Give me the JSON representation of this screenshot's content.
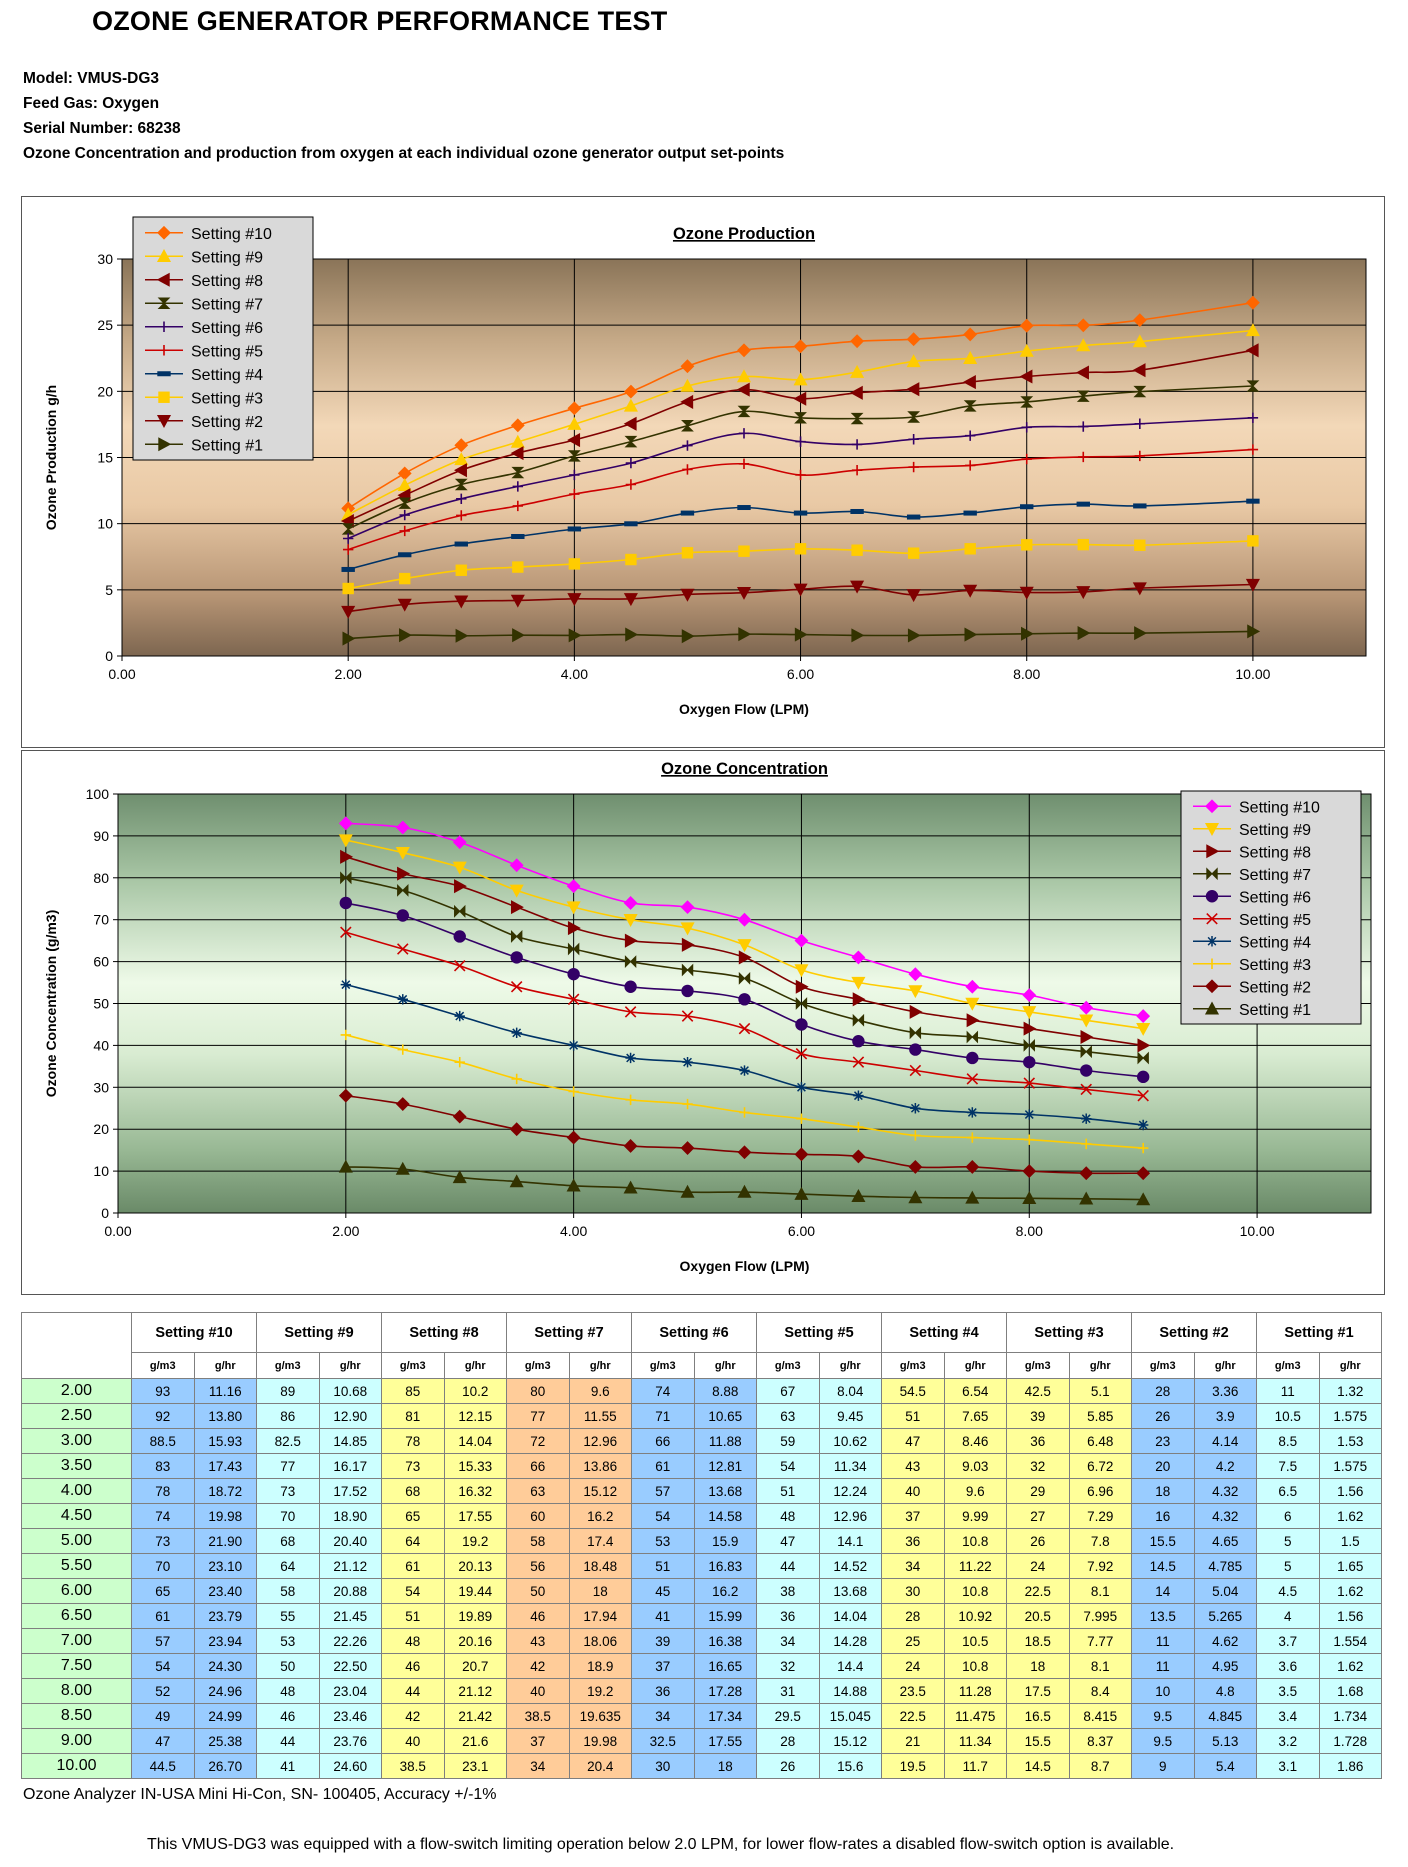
{
  "page_title": "OZONE GENERATOR PERFORMANCE TEST",
  "meta": {
    "model": "Model: VMUS-DG3",
    "feed_gas": "Feed Gas: Oxygen",
    "serial": "Serial Number: 68238",
    "description": "Ozone Concentration and production from oxygen at each individual ozone generator output set-points"
  },
  "chart_data": [
    {
      "type": "line",
      "title": "Ozone Production",
      "xlabel": "Oxygen Flow (LPM)",
      "ylabel": "Ozone Production g/h",
      "xlim": [
        0,
        11
      ],
      "ylim": [
        0,
        30
      ],
      "x_ticks": [
        0,
        2,
        4,
        6,
        8,
        10
      ],
      "x_tick_labels": [
        "0.00",
        "2.00",
        "4.00",
        "6.00",
        "8.00",
        "10.00"
      ],
      "y_ticks": [
        0,
        5,
        10,
        15,
        20,
        25,
        30
      ],
      "y_tick_labels": [
        "0",
        "5",
        "10",
        "15",
        "20",
        "25",
        "30"
      ],
      "grid": true,
      "legend": "top-left",
      "x": [
        2.0,
        2.5,
        3.0,
        3.5,
        4.0,
        4.5,
        5.0,
        5.5,
        6.0,
        6.5,
        7.0,
        7.5,
        8.0,
        8.5,
        9.0,
        10.0
      ],
      "series": [
        {
          "name": "Setting #10",
          "color": "#ff6600",
          "marker": "diamond",
          "values": [
            11.16,
            13.8,
            15.93,
            17.43,
            18.72,
            19.98,
            21.9,
            23.1,
            23.4,
            23.79,
            23.94,
            24.3,
            24.96,
            24.99,
            25.38,
            26.7
          ]
        },
        {
          "name": "Setting #9",
          "color": "#ffcc00",
          "marker": "triangle-up",
          "values": [
            10.68,
            12.9,
            14.85,
            16.17,
            17.52,
            18.9,
            20.4,
            21.12,
            20.88,
            21.45,
            22.26,
            22.5,
            23.04,
            23.46,
            23.76,
            24.6
          ]
        },
        {
          "name": "Setting #8",
          "color": "#800000",
          "marker": "triangle-left",
          "values": [
            10.2,
            12.15,
            14.04,
            15.33,
            16.32,
            17.55,
            19.2,
            20.13,
            19.44,
            19.89,
            20.16,
            20.7,
            21.12,
            21.42,
            21.6,
            23.1
          ]
        },
        {
          "name": "Setting #7",
          "color": "#333300",
          "marker": "hourglass",
          "values": [
            9.6,
            11.55,
            12.96,
            13.86,
            15.12,
            16.2,
            17.4,
            18.48,
            18,
            17.94,
            18.06,
            18.9,
            19.2,
            19.635,
            19.98,
            20.4
          ]
        },
        {
          "name": "Setting #6",
          "color": "#330066",
          "marker": "plus",
          "values": [
            8.88,
            10.65,
            11.88,
            12.81,
            13.68,
            14.58,
            15.9,
            16.83,
            16.2,
            15.99,
            16.38,
            16.65,
            17.28,
            17.34,
            17.55,
            18
          ]
        },
        {
          "name": "Setting #5",
          "color": "#cc0000",
          "marker": "plus",
          "values": [
            8.04,
            9.45,
            10.62,
            11.34,
            12.24,
            12.96,
            14.1,
            14.52,
            13.68,
            14.04,
            14.28,
            14.4,
            14.88,
            15.045,
            15.12,
            15.6
          ]
        },
        {
          "name": "Setting #4",
          "color": "#003366",
          "marker": "dash",
          "values": [
            6.54,
            7.65,
            8.46,
            9.03,
            9.6,
            9.99,
            10.8,
            11.22,
            10.8,
            10.92,
            10.5,
            10.8,
            11.28,
            11.475,
            11.34,
            11.7
          ]
        },
        {
          "name": "Setting #3",
          "color": "#ffcc00",
          "marker": "square",
          "values": [
            5.1,
            5.85,
            6.48,
            6.72,
            6.96,
            7.29,
            7.8,
            7.92,
            8.1,
            7.995,
            7.77,
            8.1,
            8.4,
            8.415,
            8.37,
            8.7
          ]
        },
        {
          "name": "Setting #2",
          "color": "#800000",
          "marker": "triangle-down",
          "values": [
            3.36,
            3.9,
            4.14,
            4.2,
            4.32,
            4.32,
            4.65,
            4.785,
            5.04,
            5.265,
            4.62,
            4.95,
            4.8,
            4.845,
            5.13,
            5.4
          ]
        },
        {
          "name": "Setting #1",
          "color": "#333300",
          "marker": "triangle-right",
          "values": [
            1.32,
            1.575,
            1.53,
            1.575,
            1.56,
            1.62,
            1.5,
            1.65,
            1.62,
            1.56,
            1.554,
            1.62,
            1.68,
            1.734,
            1.728,
            1.86
          ]
        }
      ]
    },
    {
      "type": "line",
      "title": "Ozone Concentration",
      "xlabel": "Oxygen Flow (LPM)",
      "ylabel": "Ozone Concentration (g/m3)",
      "xlim": [
        0,
        11
      ],
      "ylim": [
        0,
        100
      ],
      "x_ticks": [
        0,
        2,
        4,
        6,
        8,
        10
      ],
      "x_tick_labels": [
        "0.00",
        "2.00",
        "4.00",
        "6.00",
        "8.00",
        "10.00"
      ],
      "y_ticks": [
        0,
        10,
        20,
        30,
        40,
        50,
        60,
        70,
        80,
        90,
        100
      ],
      "y_tick_labels": [
        "0",
        "10",
        "20",
        "30",
        "40",
        "50",
        "60",
        "70",
        "80",
        "90",
        "100"
      ],
      "grid": true,
      "legend": "top-right",
      "x": [
        2.0,
        2.5,
        3.0,
        3.5,
        4.0,
        4.5,
        5.0,
        5.5,
        6.0,
        6.5,
        7.0,
        7.5,
        8.0,
        8.5,
        9.0
      ],
      "series": [
        {
          "name": "Setting #10",
          "color": "#ff00ff",
          "marker": "diamond",
          "values": [
            93,
            92,
            88.5,
            83,
            78,
            74,
            73,
            70,
            65,
            61,
            57,
            54,
            52,
            49,
            47
          ]
        },
        {
          "name": "Setting #9",
          "color": "#ffcc00",
          "marker": "triangle-down",
          "values": [
            89,
            86,
            82.5,
            77,
            73,
            70,
            68,
            64,
            58,
            55,
            53,
            50,
            48,
            46,
            44
          ]
        },
        {
          "name": "Setting #8",
          "color": "#800000",
          "marker": "triangle-right",
          "values": [
            85,
            81,
            78,
            73,
            68,
            65,
            64,
            61,
            54,
            51,
            48,
            46,
            44,
            42,
            40
          ]
        },
        {
          "name": "Setting #7",
          "color": "#333300",
          "marker": "bowtie",
          "values": [
            80,
            77,
            72,
            66,
            63,
            60,
            58,
            56,
            50,
            46,
            43,
            42,
            40,
            38.5,
            37
          ]
        },
        {
          "name": "Setting #6",
          "color": "#330066",
          "marker": "circle",
          "values": [
            74,
            71,
            66,
            61,
            57,
            54,
            53,
            51,
            45,
            41,
            39,
            37,
            36,
            34,
            32.5
          ]
        },
        {
          "name": "Setting #5",
          "color": "#cc0000",
          "marker": "x",
          "values": [
            67,
            63,
            59,
            54,
            51,
            48,
            47,
            44,
            38,
            36,
            34,
            32,
            31,
            29.5,
            28
          ]
        },
        {
          "name": "Setting #4",
          "color": "#003366",
          "marker": "star",
          "values": [
            54.5,
            51,
            47,
            43,
            40,
            37,
            36,
            34,
            30,
            28,
            25,
            24,
            23.5,
            22.5,
            21
          ]
        },
        {
          "name": "Setting #3",
          "color": "#ffcc00",
          "marker": "plus",
          "values": [
            42.5,
            39,
            36,
            32,
            29,
            27,
            26,
            24,
            22.5,
            20.5,
            18.5,
            18,
            17.5,
            16.5,
            15.5
          ]
        },
        {
          "name": "Setting #2",
          "color": "#800000",
          "marker": "diamond",
          "values": [
            28,
            26,
            23,
            20,
            18,
            16,
            15.5,
            14.5,
            14,
            13.5,
            11,
            11,
            10,
            9.5,
            9.5
          ]
        },
        {
          "name": "Setting #1",
          "color": "#333300",
          "marker": "triangle-up",
          "values": [
            11,
            10.5,
            8.5,
            7.5,
            6.5,
            6,
            5,
            5,
            4.5,
            4,
            3.7,
            3.6,
            3.5,
            3.4,
            3.2
          ]
        }
      ]
    }
  ],
  "table": {
    "settings": [
      "Setting #10",
      "Setting #9",
      "Setting #8",
      "Setting #7",
      "Setting #6",
      "Setting #5",
      "Setting #4",
      "Setting #3",
      "Setting #2",
      "Setting #1"
    ],
    "sub_headers": [
      "g/m3",
      "g/hr"
    ],
    "colors": {
      "blue": "#99ccff",
      "cyan": "#ccffff",
      "yellow": "#ffff99",
      "orange": "#ffcc99",
      "green": "#ccffcc"
    },
    "rows": [
      {
        "flow": "2.00",
        "cells": [
          "93",
          "11.16",
          "89",
          "10.68",
          "85",
          "10.2",
          "80",
          "9.6",
          "74",
          "8.88",
          "67",
          "8.04",
          "54.5",
          "6.54",
          "42.5",
          "5.1",
          "28",
          "3.36",
          "11",
          "1.32"
        ]
      },
      {
        "flow": "2.50",
        "cells": [
          "92",
          "13.80",
          "86",
          "12.90",
          "81",
          "12.15",
          "77",
          "11.55",
          "71",
          "10.65",
          "63",
          "9.45",
          "51",
          "7.65",
          "39",
          "5.85",
          "26",
          "3.9",
          "10.5",
          "1.575"
        ]
      },
      {
        "flow": "3.00",
        "cells": [
          "88.5",
          "15.93",
          "82.5",
          "14.85",
          "78",
          "14.04",
          "72",
          "12.96",
          "66",
          "11.88",
          "59",
          "10.62",
          "47",
          "8.46",
          "36",
          "6.48",
          "23",
          "4.14",
          "8.5",
          "1.53"
        ]
      },
      {
        "flow": "3.50",
        "cells": [
          "83",
          "17.43",
          "77",
          "16.17",
          "73",
          "15.33",
          "66",
          "13.86",
          "61",
          "12.81",
          "54",
          "11.34",
          "43",
          "9.03",
          "32",
          "6.72",
          "20",
          "4.2",
          "7.5",
          "1.575"
        ]
      },
      {
        "flow": "4.00",
        "cells": [
          "78",
          "18.72",
          "73",
          "17.52",
          "68",
          "16.32",
          "63",
          "15.12",
          "57",
          "13.68",
          "51",
          "12.24",
          "40",
          "9.6",
          "29",
          "6.96",
          "18",
          "4.32",
          "6.5",
          "1.56"
        ]
      },
      {
        "flow": "4.50",
        "cells": [
          "74",
          "19.98",
          "70",
          "18.90",
          "65",
          "17.55",
          "60",
          "16.2",
          "54",
          "14.58",
          "48",
          "12.96",
          "37",
          "9.99",
          "27",
          "7.29",
          "16",
          "4.32",
          "6",
          "1.62"
        ]
      },
      {
        "flow": "5.00",
        "cells": [
          "73",
          "21.90",
          "68",
          "20.40",
          "64",
          "19.2",
          "58",
          "17.4",
          "53",
          "15.9",
          "47",
          "14.1",
          "36",
          "10.8",
          "26",
          "7.8",
          "15.5",
          "4.65",
          "5",
          "1.5"
        ]
      },
      {
        "flow": "5.50",
        "cells": [
          "70",
          "23.10",
          "64",
          "21.12",
          "61",
          "20.13",
          "56",
          "18.48",
          "51",
          "16.83",
          "44",
          "14.52",
          "34",
          "11.22",
          "24",
          "7.92",
          "14.5",
          "4.785",
          "5",
          "1.65"
        ]
      },
      {
        "flow": "6.00",
        "cells": [
          "65",
          "23.40",
          "58",
          "20.88",
          "54",
          "19.44",
          "50",
          "18",
          "45",
          "16.2",
          "38",
          "13.68",
          "30",
          "10.8",
          "22.5",
          "8.1",
          "14",
          "5.04",
          "4.5",
          "1.62"
        ]
      },
      {
        "flow": "6.50",
        "cells": [
          "61",
          "23.79",
          "55",
          "21.45",
          "51",
          "19.89",
          "46",
          "17.94",
          "41",
          "15.99",
          "36",
          "14.04",
          "28",
          "10.92",
          "20.5",
          "7.995",
          "13.5",
          "5.265",
          "4",
          "1.56"
        ]
      },
      {
        "flow": "7.00",
        "cells": [
          "57",
          "23.94",
          "53",
          "22.26",
          "48",
          "20.16",
          "43",
          "18.06",
          "39",
          "16.38",
          "34",
          "14.28",
          "25",
          "10.5",
          "18.5",
          "7.77",
          "11",
          "4.62",
          "3.7",
          "1.554"
        ]
      },
      {
        "flow": "7.50",
        "cells": [
          "54",
          "24.30",
          "50",
          "22.50",
          "46",
          "20.7",
          "42",
          "18.9",
          "37",
          "16.65",
          "32",
          "14.4",
          "24",
          "10.8",
          "18",
          "8.1",
          "11",
          "4.95",
          "3.6",
          "1.62"
        ]
      },
      {
        "flow": "8.00",
        "cells": [
          "52",
          "24.96",
          "48",
          "23.04",
          "44",
          "21.12",
          "40",
          "19.2",
          "36",
          "17.28",
          "31",
          "14.88",
          "23.5",
          "11.28",
          "17.5",
          "8.4",
          "10",
          "4.8",
          "3.5",
          "1.68"
        ]
      },
      {
        "flow": "8.50",
        "cells": [
          "49",
          "24.99",
          "46",
          "23.46",
          "42",
          "21.42",
          "38.5",
          "19.635",
          "34",
          "17.34",
          "29.5",
          "15.045",
          "22.5",
          "11.475",
          "16.5",
          "8.415",
          "9.5",
          "4.845",
          "3.4",
          "1.734"
        ]
      },
      {
        "flow": "9.00",
        "cells": [
          "47",
          "25.38",
          "44",
          "23.76",
          "40",
          "21.6",
          "37",
          "19.98",
          "32.5",
          "17.55",
          "28",
          "15.12",
          "21",
          "11.34",
          "15.5",
          "8.37",
          "9.5",
          "5.13",
          "3.2",
          "1.728"
        ]
      },
      {
        "flow": "10.00",
        "cells": [
          "44.5",
          "26.70",
          "41",
          "24.60",
          "38.5",
          "23.1",
          "34",
          "20.4",
          "30",
          "18",
          "26",
          "15.6",
          "19.5",
          "11.7",
          "14.5",
          "8.7",
          "9",
          "5.4",
          "3.1",
          "1.86"
        ]
      }
    ]
  },
  "notes": {
    "analyzer": "Ozone Analyzer IN-USA Mini Hi-Con, SN- 100405, Accuracy +/-1%",
    "footer": "This VMUS-DG3 was equipped with a flow-switch limiting operation below 2.0 LPM, for lower flow-rates a disabled flow-switch option is available."
  }
}
